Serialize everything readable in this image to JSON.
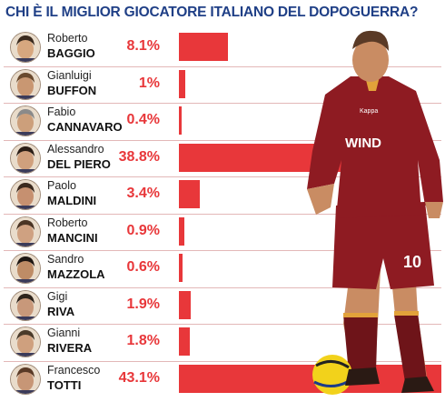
{
  "chart_data": {
    "type": "bar",
    "orientation": "horizontal",
    "title": "CHI È IL MIGLIOR GIOCATORE ITALIANO DEL DOPOGUERRA?",
    "categories": [
      {
        "first": "Roberto",
        "last": "BAGGIO"
      },
      {
        "first": "Gianluigi",
        "last": "BUFFON"
      },
      {
        "first": "Fabio",
        "last": "CANNAVARO"
      },
      {
        "first": "Alessandro",
        "last": "DEL PIERO"
      },
      {
        "first": "Paolo",
        "last": "MALDINI"
      },
      {
        "first": "Roberto",
        "last": "MANCINI"
      },
      {
        "first": "Sandro",
        "last": "MAZZOLA"
      },
      {
        "first": "Gigi",
        "last": "RIVA"
      },
      {
        "first": "Gianni",
        "last": "RIVERA"
      },
      {
        "first": "Francesco",
        "last": "TOTTI"
      }
    ],
    "values": [
      8.1,
      1,
      0.4,
      38.8,
      3.4,
      0.9,
      0.6,
      1.9,
      1.8,
      43.1
    ],
    "value_labels": [
      "8.1%",
      "1%",
      "0.4%",
      "38.8%",
      "3.4%",
      "0.9%",
      "0.6%",
      "1.9%",
      "1.8%",
      "43.1%"
    ],
    "unit": "%",
    "xlim": [
      0,
      43.1
    ],
    "grid": false,
    "colors": {
      "bar": "#e8373a",
      "title": "#1f3f86",
      "value": "#e8373a"
    }
  },
  "photo": {
    "sponsor": "WIND",
    "shirt_number": "10",
    "kit_maker": "Kappa",
    "colors": {
      "shirt": "#8e1b22",
      "trim": "#e2a23a",
      "skin": "#c98c63",
      "hair": "#5a3a26"
    }
  }
}
